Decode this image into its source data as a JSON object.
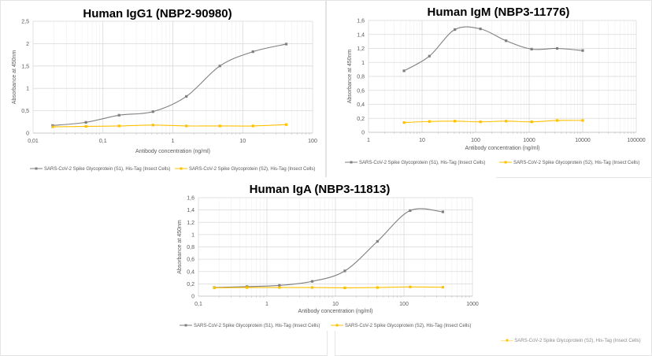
{
  "colors": {
    "s1": "#7f7f7f",
    "s2": "#ffc000",
    "grid": "#d9d9d9",
    "minor": "#f0f0f0"
  },
  "chart_data": [
    {
      "type": "line",
      "title": "Human IgG1 (NBP2-90980)",
      "xlabel": "Antibody concentration (ng/ml)",
      "ylabel": "Absorbance at 450nm",
      "xscale": "log",
      "xlim": [
        0.01,
        100
      ],
      "ylim": [
        0,
        2.5
      ],
      "xticks": [
        0.01,
        0.1,
        1,
        10,
        100
      ],
      "xtick_labels": [
        "0,01",
        "0,1",
        "1",
        "10",
        "100"
      ],
      "yticks": [
        0,
        0.5,
        1,
        1.5,
        2,
        2.5
      ],
      "ytick_labels": [
        "0",
        "0,5",
        "1",
        "1,5",
        "2",
        "2,5"
      ],
      "grid": true,
      "legend": "bottom",
      "x": [
        0.019,
        0.057,
        0.17,
        0.52,
        1.56,
        4.7,
        14,
        42
      ],
      "series": [
        {
          "name": "SARS-CoV-2 Spike Glycoprotein (S1), His-Tag (Insect Cells)",
          "values": [
            0.17,
            0.24,
            0.4,
            0.48,
            0.82,
            1.5,
            1.82,
            1.99
          ]
        },
        {
          "name": "SARS-CoV-2 Spike Glycoprotein (S2), His-Tag (Insect Cells)",
          "values": [
            0.14,
            0.15,
            0.16,
            0.18,
            0.16,
            0.16,
            0.16,
            0.19
          ]
        }
      ]
    },
    {
      "type": "line",
      "title": "Human IgM (NBP3-11776)",
      "xlabel": "Antibody concentration (ng/ml)",
      "ylabel": "Absorbance at 450nm",
      "xscale": "log",
      "xlim": [
        1,
        100000
      ],
      "ylim": [
        0,
        1.6
      ],
      "xticks": [
        1,
        10,
        100,
        1000,
        10000,
        100000
      ],
      "xtick_labels": [
        "1",
        "10",
        "100",
        "1000",
        "10000",
        "100000"
      ],
      "yticks": [
        0,
        0.2,
        0.4,
        0.6,
        0.8,
        1,
        1.2,
        1.4,
        1.6
      ],
      "ytick_labels": [
        "0",
        "0,2",
        "0,4",
        "0,6",
        "0,8",
        "1",
        "1,2",
        "1,4",
        "1,6"
      ],
      "grid": true,
      "legend": "bottom",
      "x": [
        4.6,
        13.7,
        41,
        123,
        370,
        1111,
        3333,
        10000
      ],
      "series": [
        {
          "name": "SARS-CoV-2 Spike Glycoprotein (S1), His-Tag (Insect Cells)",
          "values": [
            0.88,
            1.09,
            1.47,
            1.48,
            1.31,
            1.19,
            1.2,
            1.17
          ]
        },
        {
          "name": "SARS-CoV-2 Spike Glycoprotein (S2), His-Tag (Insect Cells)",
          "values": [
            0.14,
            0.155,
            0.16,
            0.15,
            0.16,
            0.15,
            0.17,
            0.17
          ]
        }
      ]
    },
    {
      "type": "line",
      "title": "Human IgA (NBP3-11813)",
      "xlabel": "Antibody concentration (ng/ml)",
      "ylabel": "Absorbance at 450nm",
      "xscale": "log",
      "xlim": [
        0.1,
        1000
      ],
      "ylim": [
        0,
        1.6
      ],
      "xticks": [
        0.1,
        1,
        10,
        100,
        1000
      ],
      "xtick_labels": [
        "0,1",
        "1",
        "10",
        "100",
        "1000"
      ],
      "yticks": [
        0,
        0.2,
        0.4,
        0.6,
        0.8,
        1,
        1.2,
        1.4,
        1.6
      ],
      "ytick_labels": [
        "0",
        "0,2",
        "0,4",
        "0,6",
        "0,8",
        "1",
        "1,2",
        "1,4",
        "1,6"
      ],
      "grid": true,
      "legend": "bottom",
      "x": [
        0.17,
        0.51,
        1.52,
        4.57,
        13.7,
        41,
        123,
        370
      ],
      "series": [
        {
          "name": "SARS-CoV-2 Spike Glycoprotein (S1), His-Tag (Insect Cells)",
          "values": [
            0.14,
            0.155,
            0.175,
            0.24,
            0.41,
            0.89,
            1.39,
            1.37
          ]
        },
        {
          "name": "SARS-CoV-2 Spike Glycoprotein (S2), His-Tag (Insect Cells)",
          "values": [
            0.135,
            0.14,
            0.14,
            0.14,
            0.135,
            0.14,
            0.15,
            0.145
          ]
        }
      ]
    }
  ],
  "background_legend": "SARS-CoV-2 Spike Glycoprotein (S2), His-Tag (Insect Cells)"
}
